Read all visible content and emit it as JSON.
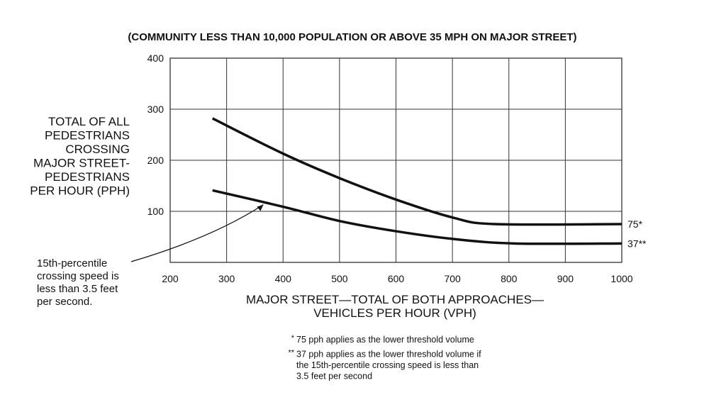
{
  "chart_data": {
    "type": "line",
    "title": "(COMMUNITY LESS THAN 10,000 POPULATION OR ABOVE 35 MPH ON MAJOR STREET)",
    "ylabel_lines": [
      "TOTAL OF ALL",
      "PEDESTRIANS",
      "CROSSING",
      "MAJOR STREET-",
      "PEDESTRIANS",
      "PER HOUR (PPH)"
    ],
    "xlabel_lines": [
      "MAJOR STREET—TOTAL OF BOTH APPROACHES—",
      "VEHICLES PER HOUR (VPH)"
    ],
    "xlim": [
      200,
      1000
    ],
    "ylim": [
      0,
      400
    ],
    "xticks": [
      "200",
      "300",
      "400",
      "500",
      "600",
      "700",
      "800",
      "900",
      "1000"
    ],
    "yticks": [
      "100",
      "200",
      "300",
      "400"
    ],
    "grid": true,
    "series": [
      {
        "name": "75*",
        "x": [
          275,
          400,
          500,
          600,
          700,
          775,
          1000
        ],
        "y": [
          282,
          213,
          165,
          123,
          88,
          75,
          75
        ]
      },
      {
        "name": "37**",
        "x": [
          275,
          400,
          500,
          600,
          700,
          810,
          1000
        ],
        "y": [
          141,
          109,
          81,
          61,
          46,
          37,
          37
        ]
      }
    ],
    "annotation": {
      "lines": [
        "15th-percentile",
        "crossing speed is",
        "less than 3.5 feet",
        "per second."
      ],
      "points_to": {
        "x": 365,
        "y": 113
      }
    },
    "footnotes": [
      {
        "mark": "*",
        "lines": [
          "75 pph applies as the lower threshold volume"
        ]
      },
      {
        "mark": "**",
        "lines": [
          "37 pph applies as the lower threshold volume if",
          "the 15th-percentile crossing speed is less than",
          "3.5 feet per second"
        ]
      }
    ]
  }
}
